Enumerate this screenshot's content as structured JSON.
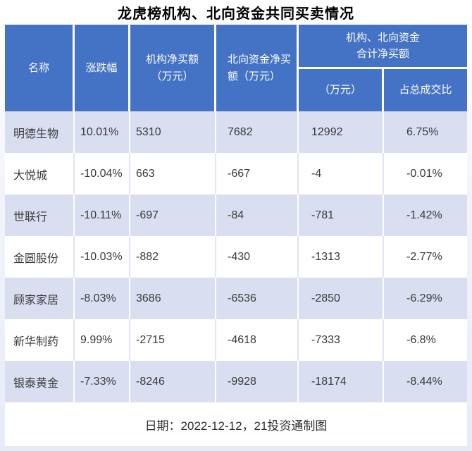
{
  "title": "龙虎榜机构、北向资金共同买卖情况",
  "header": {
    "name": "名称",
    "change": "涨跌幅",
    "inst": [
      "机构净买额",
      "（万元）"
    ],
    "north": [
      "北向资金净买",
      "额（万元）"
    ],
    "combo": [
      "机构、北向资金",
      "合计净买额"
    ],
    "combo_amount": "（万元）",
    "combo_pct": "占总成交比"
  },
  "rows": [
    {
      "name": "明德生物",
      "change": "10.01%",
      "inst": "5310",
      "north": "7682",
      "total": "12992",
      "pct": "6.75%"
    },
    {
      "name": "大悦城",
      "change": "-10.04%",
      "inst": "663",
      "north": "-667",
      "total": "-4",
      "pct": "-0.01%"
    },
    {
      "name": "世联行",
      "change": "-10.11%",
      "inst": "-697",
      "north": "-84",
      "total": "-781",
      "pct": "-1.42%"
    },
    {
      "name": "金圆股份",
      "change": "-10.03%",
      "inst": "-882",
      "north": "-430",
      "total": "-1313",
      "pct": "-2.77%"
    },
    {
      "name": "顾家家居",
      "change": "-8.03%",
      "inst": "3686",
      "north": "-6536",
      "total": "-2850",
      "pct": "-6.29%"
    },
    {
      "name": "新华制药",
      "change": "9.99%",
      "inst": "-2715",
      "north": "-4618",
      "total": "-7333",
      "pct": "-6.8%"
    },
    {
      "name": "银泰黄金",
      "change": "-7.33%",
      "inst": "-8246",
      "north": "-9928",
      "total": "-18174",
      "pct": "-8.44%"
    }
  ],
  "footer_note": "日期：2022-12-12，21投资通制图",
  "colors": {
    "header_bg": "#4472C4",
    "alt_row_bg": "#DADEF1",
    "header_text": "#FFFFFF",
    "body_text": "#3A3A3A"
  },
  "chart_data": {
    "type": "table",
    "title": "龙虎榜机构、北向资金共同买卖情况",
    "columns": [
      "名称",
      "涨跌幅",
      "机构净买额（万元）",
      "北向资金净买额（万元）",
      "机构、北向资金合计净买额（万元）",
      "机构、北向资金合计净买额占总成交比"
    ],
    "rows": [
      [
        "明德生物",
        "10.01%",
        5310,
        7682,
        12992,
        "6.75%"
      ],
      [
        "大悦城",
        "-10.04%",
        663,
        -667,
        -4,
        "-0.01%"
      ],
      [
        "世联行",
        "-10.11%",
        -697,
        -84,
        -781,
        "-1.42%"
      ],
      [
        "金圆股份",
        "-10.03%",
        -882,
        -430,
        -1313,
        "-2.77%"
      ],
      [
        "顾家家居",
        "-8.03%",
        3686,
        -6536,
        -2850,
        "-6.29%"
      ],
      [
        "新华制药",
        "9.99%",
        -2715,
        -4618,
        -7333,
        "-6.8%"
      ],
      [
        "银泰黄金",
        "-7.33%",
        -8246,
        -9928,
        -18174,
        "-8.44%"
      ]
    ],
    "footnote": "日期：2022-12-12，21投资通制图"
  }
}
